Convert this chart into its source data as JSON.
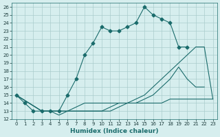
{
  "xlabel": "Humidex (Indice chaleur)",
  "xlim": [
    -0.5,
    23.5
  ],
  "ylim": [
    12,
    26.5
  ],
  "yticks": [
    12,
    13,
    14,
    15,
    16,
    17,
    18,
    19,
    20,
    21,
    22,
    23,
    24,
    25,
    26
  ],
  "xticks": [
    0,
    1,
    2,
    3,
    4,
    5,
    6,
    7,
    8,
    9,
    10,
    11,
    12,
    13,
    14,
    15,
    16,
    17,
    18,
    19,
    20,
    21,
    22,
    23
  ],
  "background_color": "#d6eeee",
  "grid_color": "#aacccc",
  "line_color": "#1a6b6b",
  "lines": [
    {
      "x": [
        0,
        1,
        2,
        3,
        4,
        5,
        6,
        7,
        8,
        9,
        10,
        11,
        12,
        13,
        14,
        15,
        16,
        17,
        18,
        19,
        20
      ],
      "y": [
        15,
        14,
        13,
        13,
        13,
        13,
        15,
        17,
        20,
        21.5,
        23.5,
        23,
        23,
        23.5,
        24,
        26,
        25,
        24.5,
        24,
        21,
        21
      ],
      "has_markers": true
    },
    {
      "x": [
        0,
        3,
        4,
        5,
        6,
        7,
        8,
        9,
        10,
        11,
        12,
        13,
        14,
        15,
        16,
        17,
        18,
        19,
        20,
        21,
        22,
        23
      ],
      "y": [
        15,
        13,
        13,
        13,
        13,
        13.5,
        14,
        14,
        14,
        14,
        14,
        14,
        14.5,
        15,
        16,
        17,
        18,
        19,
        20,
        21,
        21,
        14.5
      ],
      "has_markers": false
    },
    {
      "x": [
        0,
        3,
        4,
        5,
        6,
        7,
        8,
        9,
        10,
        11,
        12,
        13,
        14,
        15,
        16,
        17,
        18,
        19,
        20,
        21,
        22,
        23
      ],
      "y": [
        15,
        13,
        13,
        13,
        13,
        13,
        13,
        13,
        13,
        13.5,
        14,
        14,
        14,
        14.5,
        15,
        16,
        17,
        18.5,
        17,
        16,
        16,
        null
      ],
      "has_markers": false
    },
    {
      "x": [
        0,
        3,
        4,
        5,
        6,
        7,
        8,
        9,
        10,
        11,
        12,
        13,
        14,
        15,
        16,
        17,
        18,
        19,
        20,
        21,
        22,
        23
      ],
      "y": [
        15,
        13,
        13,
        12.5,
        13,
        13,
        13,
        13,
        13,
        13,
        13.5,
        14,
        14,
        14,
        14,
        14,
        14.5,
        14.5,
        14.5,
        14.5,
        14.5,
        14.5
      ],
      "has_markers": false
    }
  ]
}
